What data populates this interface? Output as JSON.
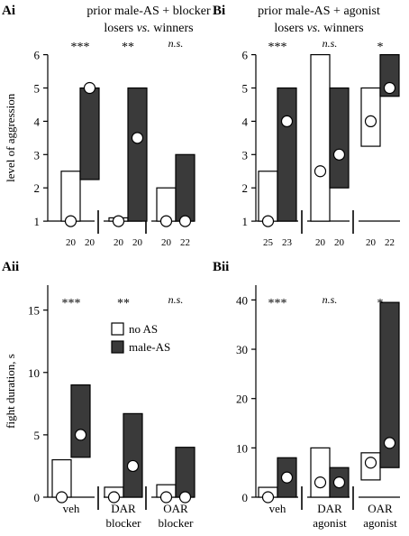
{
  "legend": [
    {
      "label": "no AS",
      "color": "#ffffff"
    },
    {
      "label": "male-AS",
      "color": "#3a3a3a"
    }
  ],
  "colors": {
    "no_as": "#ffffff",
    "male_as": "#3a3a3a",
    "stroke": "#000000"
  },
  "chart_data": [
    {
      "id": "Ai",
      "panel_label": "Ai",
      "title": "prior male-AS + blocker",
      "subtitle_parts": [
        "losers ",
        "vs.",
        " winners"
      ],
      "type": "box",
      "ylabel": "level of aggression",
      "ylim": [
        0,
        6
      ],
      "yticks": [
        0,
        1,
        2,
        3,
        4,
        5,
        6
      ],
      "groups": [
        {
          "significance": "***",
          "no_as": {
            "low": 1,
            "high": 2.5,
            "median": 1,
            "n": "20"
          },
          "male_as": {
            "low": 2.25,
            "high": 5,
            "median": 5,
            "n": "20"
          }
        },
        {
          "significance": "**",
          "no_as": {
            "low": 1,
            "high": 1.1,
            "median": 1,
            "n": "20"
          },
          "male_as": {
            "low": 1,
            "high": 5,
            "median": 3.5,
            "n": "20"
          }
        },
        {
          "significance": "n.s.",
          "no_as": {
            "low": 1,
            "high": 2,
            "median": 1,
            "n": "20"
          },
          "male_as": {
            "low": 1,
            "high": 3,
            "median": 1,
            "n": "22"
          }
        }
      ]
    },
    {
      "id": "Bi",
      "panel_label": "Bi",
      "title": "prior male-AS + agonist",
      "subtitle_parts": [
        "losers ",
        "vs.",
        " winners"
      ],
      "type": "box",
      "ylabel": "",
      "ylim": [
        0,
        6
      ],
      "yticks": [
        0,
        1,
        2,
        3,
        4,
        5,
        6
      ],
      "groups": [
        {
          "significance": "***",
          "no_as": {
            "low": 1,
            "high": 2.5,
            "median": 1,
            "n": "25"
          },
          "male_as": {
            "low": 1,
            "high": 5,
            "median": 4,
            "n": "23"
          }
        },
        {
          "significance": "n.s.",
          "no_as": {
            "low": 1,
            "high": 6,
            "median": 2.5,
            "n": "20"
          },
          "male_as": {
            "low": 2,
            "high": 5,
            "median": 3,
            "n": "20"
          }
        },
        {
          "significance": "*",
          "no_as": {
            "low": 3.25,
            "high": 5,
            "median": 4,
            "n": "20"
          },
          "male_as": {
            "low": 4.75,
            "high": 6,
            "median": 5,
            "n": "22"
          }
        }
      ]
    },
    {
      "id": "Aii",
      "panel_label": "Aii",
      "type": "box",
      "ylabel": "fight duration, s",
      "ylim": [
        0,
        17
      ],
      "yticks": [
        0,
        5,
        10,
        15
      ],
      "categories": [
        [
          "veh"
        ],
        [
          "DAR",
          "blocker"
        ],
        [
          "OAR",
          "blocker"
        ]
      ],
      "groups": [
        {
          "significance": "***",
          "no_as": {
            "low": 0,
            "high": 3,
            "median": 0
          },
          "male_as": {
            "low": 3.2,
            "high": 9,
            "median": 5
          }
        },
        {
          "significance": "**",
          "no_as": {
            "low": 0,
            "high": 0.8,
            "median": 0
          },
          "male_as": {
            "low": 0,
            "high": 6.7,
            "median": 2.5
          }
        },
        {
          "significance": "n.s.",
          "no_as": {
            "low": 0,
            "high": 1,
            "median": 0
          },
          "male_as": {
            "low": 0,
            "high": 4,
            "median": 0
          }
        }
      ]
    },
    {
      "id": "Bii",
      "panel_label": "Bii",
      "type": "box",
      "ylabel": "",
      "ylim": [
        0,
        43
      ],
      "yticks": [
        0,
        10,
        20,
        30,
        40
      ],
      "categories": [
        [
          "veh"
        ],
        [
          "DAR",
          "agonist"
        ],
        [
          "OAR",
          "agonist"
        ]
      ],
      "groups": [
        {
          "significance": "***",
          "no_as": {
            "low": 0,
            "high": 2,
            "median": 0
          },
          "male_as": {
            "low": 0,
            "high": 8,
            "median": 4
          }
        },
        {
          "significance": "n.s.",
          "no_as": {
            "low": 0,
            "high": 10,
            "median": 3
          },
          "male_as": {
            "low": 0,
            "high": 6,
            "median": 3
          }
        },
        {
          "significance": "*",
          "no_as": {
            "low": 3.5,
            "high": 9,
            "median": 7
          },
          "male_as": {
            "low": 6,
            "high": 39.5,
            "median": 11
          }
        }
      ]
    }
  ]
}
